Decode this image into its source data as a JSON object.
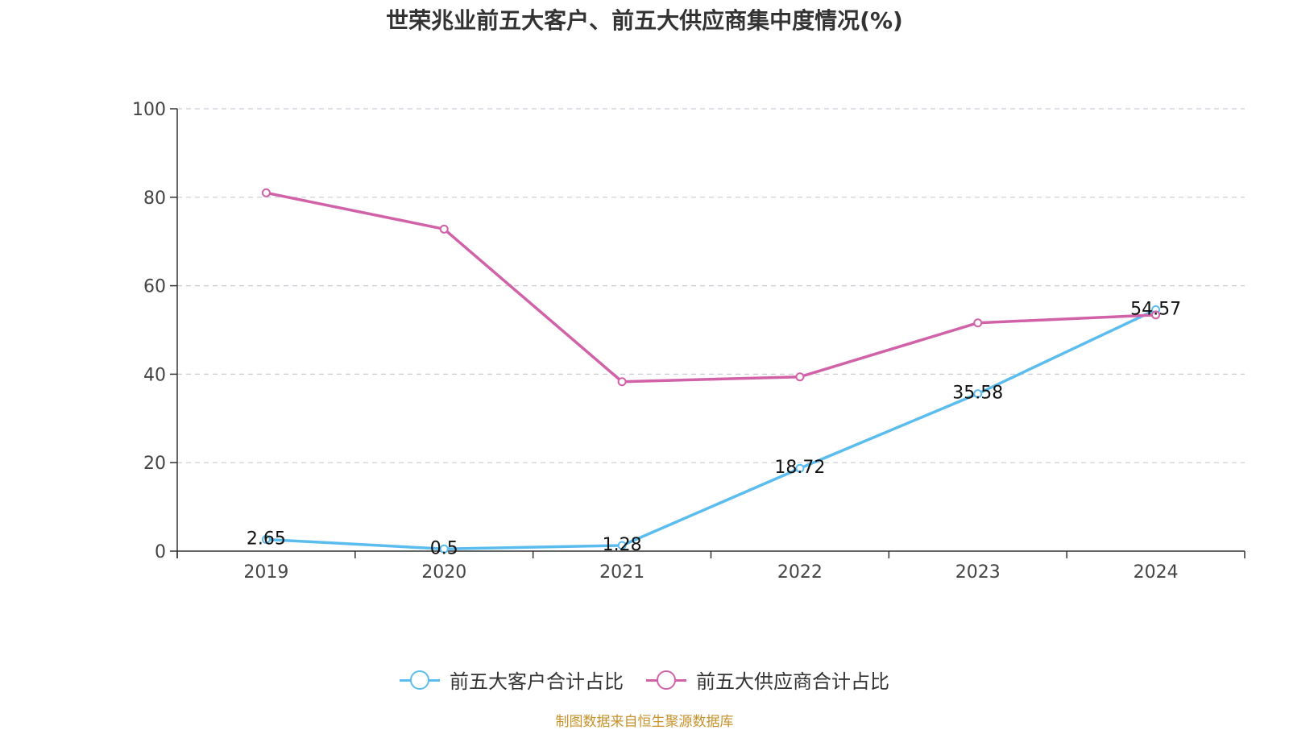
{
  "chart_data": {
    "type": "line",
    "title": "世荣兆业前五大客户、前五大供应商集中度情况(%)",
    "categories": [
      "2019",
      "2020",
      "2021",
      "2022",
      "2023",
      "2024"
    ],
    "ylim": [
      0,
      100
    ],
    "yticks": [
      0,
      20,
      40,
      60,
      80,
      100
    ],
    "grid": true,
    "legend_position": "bottom",
    "xlabel": "",
    "ylabel": "",
    "series": [
      {
        "name": "前五大客户合计占比",
        "color": "#5bbcee",
        "values": [
          2.65,
          0.5,
          1.28,
          18.72,
          35.58,
          54.57
        ],
        "labels_shown": true
      },
      {
        "name": "前五大供应商合计占比",
        "color": "#d162a8",
        "values": [
          81.0,
          72.8,
          38.3,
          39.4,
          51.6,
          53.4
        ],
        "labels_shown": false
      }
    ]
  },
  "source_note": "制图数据来自恒生聚源数据库"
}
